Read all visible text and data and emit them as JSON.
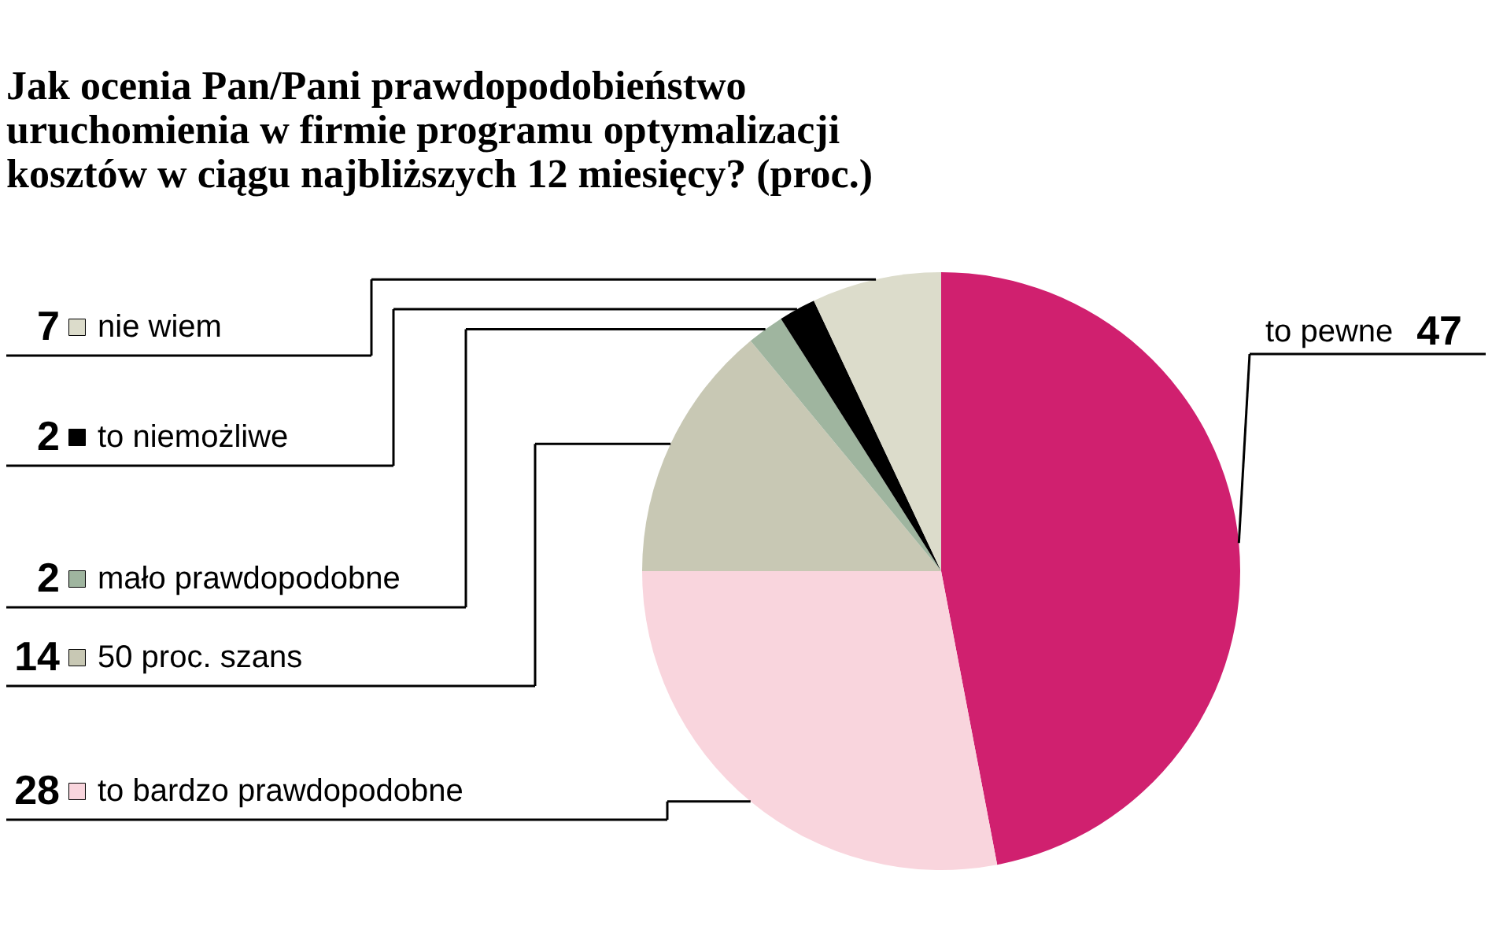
{
  "chart_data": {
    "type": "pie",
    "title": [
      "Jak ocenia Pan/Pani prawdopodobieństwo",
      "uruchomienia w firmie programu optymalizacji",
      "kosztów w ciągu najbliższych 12 miesięcy? (proc.)"
    ],
    "categories": [
      "to pewne",
      "to bardzo prawdopodobne",
      "50 proc. szans",
      "mało prawdopodobne",
      "to niemożliwe",
      "nie wiem"
    ],
    "values": [
      47,
      28,
      14,
      2,
      2,
      7
    ],
    "colors": [
      "#d0206f",
      "#f9d5dd",
      "#c8c8b4",
      "#9fb59f",
      "#000000",
      "#dcdccb"
    ],
    "data_labels": true,
    "legend": "left"
  }
}
